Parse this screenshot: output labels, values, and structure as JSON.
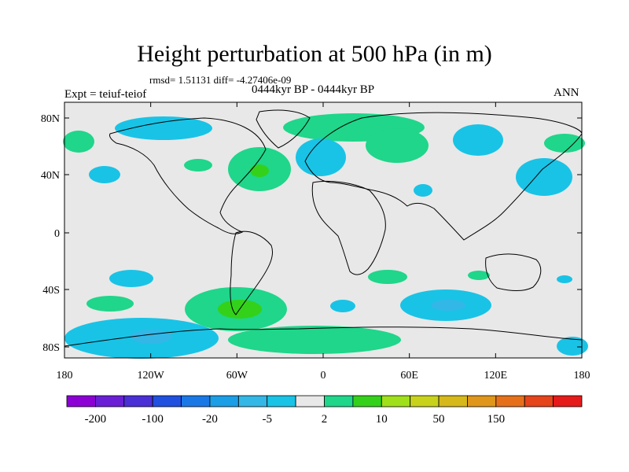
{
  "title": "Height perturbation at 500 hPa (in m)",
  "stats": "rmsd= 1.51131 diff= -4.27406e-09",
  "expt": "Expt = teiuf-teiof",
  "period": "0444kyr BP - 0444kyr BP",
  "season": "ANN",
  "map": {
    "background_color": "#e8e8e8",
    "y_ticks": [
      "80N",
      "40N",
      "0",
      "40S",
      "80S"
    ],
    "x_ticks": [
      "180",
      "120W",
      "60W",
      "0",
      "60E",
      "120E",
      "180"
    ]
  },
  "colorbar": {
    "colors": [
      "#8c00d6",
      "#6a1fd6",
      "#4a2fd6",
      "#2050e0",
      "#1a78e6",
      "#1a9ee6",
      "#33b7e6",
      "#19c3e6",
      "#e8e8e8",
      "#1fd68a",
      "#34d11a",
      "#9fe01a",
      "#c8d21a",
      "#d6b81a",
      "#e0961a",
      "#e6701a",
      "#e6441a",
      "#e61a1a"
    ],
    "labels": [
      "-200",
      "-100",
      "-20",
      "-5",
      "2",
      "10",
      "50",
      "150"
    ]
  }
}
